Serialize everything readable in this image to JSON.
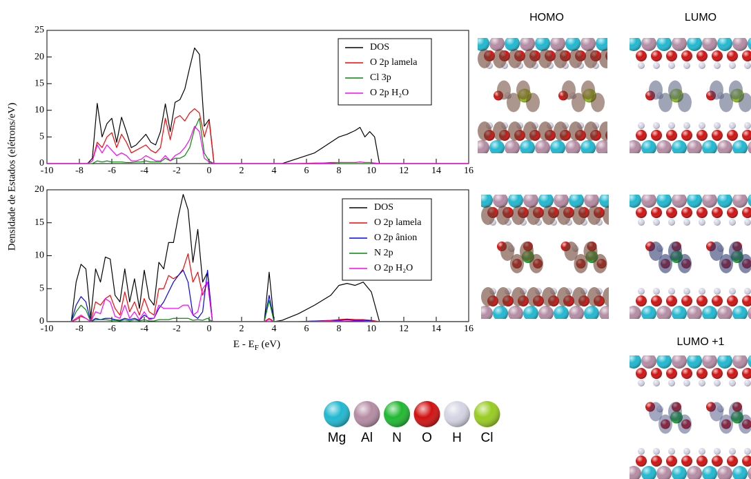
{
  "chart_data": [
    {
      "type": "line",
      "xlim": [
        -10,
        16
      ],
      "ylim": [
        0,
        25
      ],
      "xticks": [
        -10,
        -8,
        -6,
        -4,
        -2,
        0,
        2,
        4,
        6,
        8,
        10,
        12,
        14,
        16
      ],
      "yticks": [
        0,
        5,
        10,
        15,
        20,
        25
      ],
      "ylabel": "Densidade de Estados (elétrons/eV)",
      "legend": "upper right",
      "x": [
        -10,
        -7.5,
        -7.2,
        -6.9,
        -6.6,
        -6.3,
        -6.0,
        -5.7,
        -5.4,
        -5.1,
        -4.8,
        -4.5,
        -4.2,
        -3.9,
        -3.6,
        -3.3,
        -3.0,
        -2.7,
        -2.4,
        -2.1,
        -1.8,
        -1.5,
        -1.2,
        -0.9,
        -0.6,
        -0.3,
        0,
        0.3,
        4.5,
        5.5,
        6.5,
        7,
        7.5,
        8,
        8.5,
        9,
        9.3,
        9.6,
        9.9,
        10.2,
        10.5,
        16
      ],
      "series": [
        {
          "name": "DOS",
          "color": "#000000",
          "values": [
            0,
            0,
            1,
            11.3,
            5,
            7.5,
            8.5,
            4,
            8.7,
            6,
            3,
            3.5,
            4.5,
            5.5,
            4,
            3.5,
            6,
            11.2,
            6,
            11.5,
            12,
            14,
            18,
            21.7,
            20.5,
            7,
            8.3,
            0,
            0,
            1,
            2,
            3,
            4,
            5,
            5.5,
            6.2,
            6.8,
            5,
            6,
            5,
            0,
            0
          ]
        },
        {
          "name": "O 2p lamela",
          "color": "#ff0000",
          "values": [
            0,
            0,
            0.5,
            4,
            3,
            5,
            5.8,
            3,
            5.5,
            4,
            2,
            2.5,
            3,
            3.5,
            2.5,
            2,
            3,
            8.5,
            4.5,
            8.5,
            9,
            8,
            9.5,
            10.3,
            9.5,
            5,
            8,
            0,
            0,
            0,
            0.1,
            0.1,
            0.2,
            0.2,
            0.2,
            0.2,
            0.3,
            0.2,
            0.2,
            0.1,
            0,
            0
          ]
        },
        {
          "name": "Cl 3p",
          "color": "#008c00",
          "values": [
            0,
            0,
            0,
            0.5,
            0.3,
            0.5,
            0.3,
            0.3,
            0.3,
            0.2,
            0.2,
            0.3,
            0.3,
            0.5,
            0.3,
            0.3,
            0.3,
            1,
            0.5,
            1,
            1,
            1.5,
            3,
            6.5,
            8.5,
            2,
            0.5,
            0,
            0,
            0,
            0,
            0,
            0,
            0,
            0,
            0,
            0,
            0,
            0,
            0,
            0,
            0
          ]
        },
        {
          "name": "O 2p H₂O",
          "color": "#ff00ff",
          "values": [
            0,
            0,
            0.5,
            3.5,
            2,
            3.5,
            2.5,
            1.5,
            2,
            1.5,
            0.5,
            0.5,
            0.8,
            1.5,
            1,
            0.5,
            0.5,
            1.5,
            0.5,
            1.5,
            2,
            3,
            4.5,
            7,
            6,
            1,
            0.3,
            0,
            0,
            0,
            0,
            0.1,
            0.1,
            0.2,
            0.2,
            0.2,
            0.3,
            0.2,
            0.2,
            0.1,
            0,
            0
          ]
        }
      ]
    },
    {
      "type": "line",
      "xlim": [
        -10,
        16
      ],
      "ylim": [
        0,
        20
      ],
      "xticks": [
        -10,
        -8,
        -6,
        -4,
        -2,
        0,
        2,
        4,
        6,
        8,
        10,
        12,
        14,
        16
      ],
      "yticks": [
        0,
        5,
        10,
        15,
        20
      ],
      "xlabel": [
        "E - E",
        "F",
        " (eV)"
      ],
      "legend": "upper right",
      "x": [
        -10,
        -8.5,
        -8.2,
        -7.9,
        -7.6,
        -7.3,
        -7.0,
        -6.7,
        -6.4,
        -6.1,
        -5.8,
        -5.5,
        -5.2,
        -4.9,
        -4.6,
        -4.3,
        -4.0,
        -3.7,
        -3.4,
        -3.1,
        -2.8,
        -2.5,
        -2.2,
        -1.9,
        -1.6,
        -1.3,
        -1.0,
        -0.7,
        -0.4,
        -0.1,
        0.2,
        3.4,
        3.7,
        4.0,
        4.5,
        5.5,
        6.5,
        7.5,
        8,
        8.5,
        9,
        9.5,
        10,
        10.5,
        16
      ],
      "series": [
        {
          "name": "DOS",
          "color": "#000000",
          "values": [
            0,
            0,
            6,
            8.7,
            8,
            0.5,
            8,
            6,
            9.8,
            9.5,
            4,
            3,
            8,
            3,
            6.5,
            2,
            7.8,
            3.5,
            2.5,
            9,
            8,
            12,
            12,
            16,
            19.3,
            17,
            9,
            14,
            6,
            7.5,
            0,
            0,
            7.5,
            0,
            0.2,
            1.2,
            2.5,
            4,
            5.5,
            5.8,
            5.5,
            6,
            4.5,
            0,
            0
          ]
        },
        {
          "name": "O 2p lamela",
          "color": "#ff0000",
          "values": [
            0,
            0,
            0.3,
            0.8,
            0.5,
            0,
            3,
            2.5,
            3.5,
            4,
            2,
            1,
            4.5,
            1.5,
            3,
            1,
            3.5,
            1.5,
            1,
            5,
            5,
            7,
            6.5,
            7,
            8,
            10.3,
            6,
            7.5,
            4,
            6,
            0,
            0,
            0.5,
            0,
            0,
            0,
            0.1,
            0.2,
            0.3,
            0.4,
            0.3,
            0.3,
            0.2,
            0,
            0
          ]
        },
        {
          "name": "O 2p ânion",
          "color": "#0000ff",
          "values": [
            0,
            0,
            2.5,
            3.8,
            3,
            0,
            0.5,
            0.3,
            0.5,
            0.5,
            0.3,
            0.2,
            0.5,
            0.3,
            0.5,
            0.2,
            1,
            0.5,
            0.5,
            2,
            3,
            4.5,
            6,
            7,
            7.8,
            6,
            1,
            0.5,
            1.5,
            7.8,
            0,
            0,
            4,
            0,
            0,
            0,
            0.1,
            0.1,
            0.2,
            0.3,
            0.2,
            0.2,
            0.1,
            0,
            0
          ]
        },
        {
          "name": "N 2p",
          "color": "#008c00",
          "values": [
            0,
            0,
            1.5,
            2.5,
            1.8,
            0,
            0.3,
            0.3,
            0.3,
            0.2,
            0.2,
            0.1,
            0.3,
            0.1,
            0.3,
            0.1,
            0.3,
            0.1,
            0.1,
            0.3,
            0.3,
            0.3,
            0.5,
            0.5,
            0.5,
            0.5,
            0.2,
            0.3,
            0.2,
            0.5,
            0,
            0,
            3.2,
            0,
            0,
            0,
            0,
            0,
            0,
            0.1,
            0.1,
            0.1,
            0,
            0,
            0
          ]
        },
        {
          "name": "O 2p H₂O",
          "color": "#ff00ff",
          "values": [
            0,
            0,
            0.5,
            1,
            0.5,
            0,
            1.5,
            1.2,
            3.5,
            3,
            0.8,
            0.5,
            2.5,
            0.5,
            1.5,
            0.3,
            1.5,
            0.3,
            0.5,
            2.5,
            2,
            2,
            2,
            2,
            2.5,
            2.5,
            1,
            1.5,
            5,
            6,
            0,
            0,
            0.3,
            0,
            0,
            0,
            0,
            0.1,
            0.1,
            0.1,
            0.1,
            0.1,
            0,
            0,
            0
          ]
        }
      ]
    }
  ],
  "orbitals": [
    "HOMO",
    "LUMO",
    "LUMO +1"
  ],
  "atom_legend": [
    {
      "name": "Mg",
      "color": "#1fb8d0"
    },
    {
      "name": "Al",
      "color": "#b48ca4"
    },
    {
      "name": "N",
      "color": "#1fb830"
    },
    {
      "name": "O",
      "color": "#d01010"
    },
    {
      "name": "H",
      "color": "#d4d4e4"
    },
    {
      "name": "Cl",
      "color": "#98cc20"
    }
  ]
}
